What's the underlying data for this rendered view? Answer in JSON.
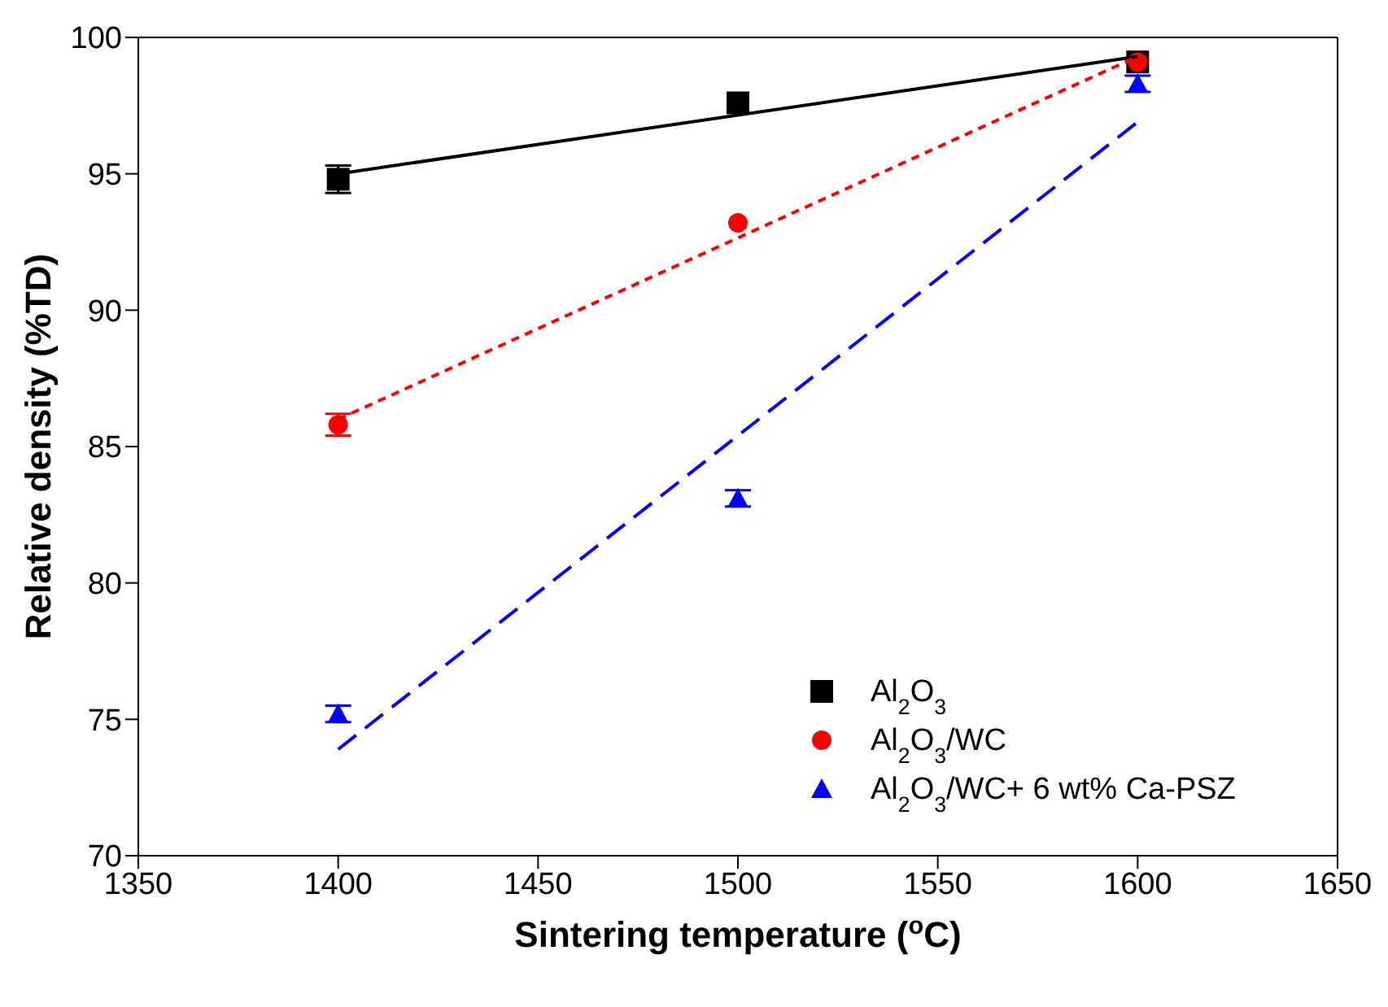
{
  "chart_data": {
    "type": "scatter",
    "xlabel": "Sintering temperature ($^{o}$C)",
    "ylabel": "Relative density (%TD)",
    "xlim": [
      1350,
      1650
    ],
    "xticks": [
      1350,
      1400,
      1450,
      1500,
      1550,
      1600,
      1650
    ],
    "ylim": [
      70,
      100
    ],
    "yticks": [
      70,
      75,
      80,
      85,
      90,
      95,
      100
    ],
    "legend": "bottom right",
    "series": [
      {
        "name": "Al$_{2}$O$_{3}$",
        "type": "scatter",
        "marker": "square",
        "color": "#000000",
        "x": [
          1400,
          1500,
          1600
        ],
        "values": [
          94.8,
          97.6,
          99.1
        ],
        "errors": [
          0.5,
          null,
          null
        ]
      },
      {
        "name": "Al$_{2}$O$_{3}$/WC",
        "type": "scatter",
        "marker": "circle",
        "color": "#ff0000",
        "x": [
          1400,
          1500,
          1600
        ],
        "values": [
          85.8,
          93.2,
          99.1
        ],
        "errors": [
          0.4,
          null,
          null
        ]
      },
      {
        "name": "Al$_{2}$O$_{3}$/WC+ 6 wt% Ca-PSZ",
        "type": "scatter",
        "marker": "triangle",
        "color": "#0000ff",
        "x": [
          1400,
          1500,
          1600
        ],
        "values": [
          75.2,
          83.1,
          98.3
        ],
        "errors": [
          0.3,
          0.3,
          0.3
        ]
      },
      {
        "type": "line",
        "marker": "none",
        "line_style": "solid",
        "color": "#000000",
        "x": [
          1400,
          1600
        ],
        "values": [
          95.0,
          99.3
        ]
      },
      {
        "type": "line",
        "marker": "none",
        "line_style": "dotted",
        "color": "#ff0000",
        "x": [
          1400,
          1600
        ],
        "values": [
          86.0,
          99.3
        ]
      },
      {
        "type": "line",
        "marker": "none",
        "line_style": "dashed",
        "color": "#0000ff",
        "x": [
          1400,
          1600
        ],
        "values": [
          73.9,
          96.9
        ]
      }
    ]
  }
}
